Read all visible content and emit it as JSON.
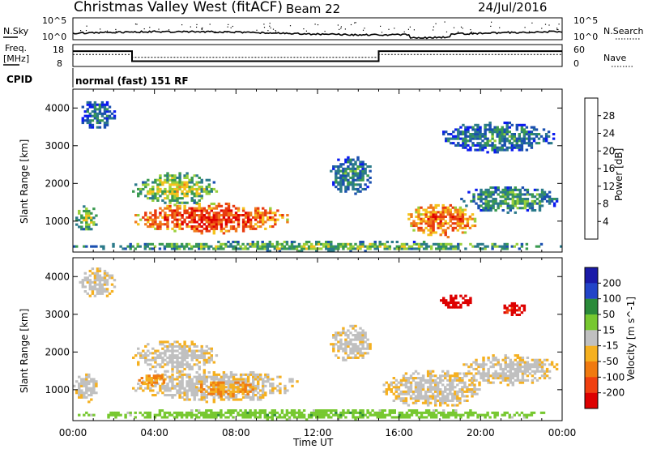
{
  "header": {
    "title": "Christmas Valley West (fitACF)",
    "beam": "Beam 22",
    "date": "24/Jul/2016"
  },
  "noise_panel": {
    "left_label": "N.Sky",
    "right_label": "N.Search",
    "left_ticks": [
      "10^5",
      "10^0"
    ],
    "right_ticks": [
      "10^5",
      "10^0"
    ]
  },
  "freq_panel": {
    "left_label_1": "Freq.",
    "left_label_2": "[MHz]",
    "right_label": "Nave",
    "left_ticks": [
      "18",
      "8"
    ],
    "right_ticks": [
      "60",
      "0"
    ],
    "freq_series": [
      {
        "x": 0,
        "y": 15
      },
      {
        "x": 2.9,
        "y": 15
      },
      {
        "x": 2.9,
        "y": 10.4
      },
      {
        "x": 15,
        "y": 10.4
      },
      {
        "x": 15,
        "y": 15
      },
      {
        "x": 24,
        "y": 15
      }
    ],
    "nave_series": [
      {
        "x": 0,
        "y": 33
      },
      {
        "x": 2.9,
        "y": 33
      },
      {
        "x": 2.9,
        "y": 25
      },
      {
        "x": 15,
        "y": 25
      },
      {
        "x": 15,
        "y": 33
      },
      {
        "x": 24,
        "y": 33
      }
    ]
  },
  "cpid": {
    "label": "CPID",
    "text": "normal (fast) 151 RF"
  },
  "chart_data": [
    {
      "type": "heatmap",
      "panel": "power",
      "ylabel": "Slant Range [km]",
      "xlabel": "Time UT",
      "xlim": [
        0,
        24
      ],
      "ylim": [
        180,
        4500
      ],
      "x_ticks": [
        "00:00",
        "04:00",
        "08:00",
        "12:00",
        "16:00",
        "20:00",
        "00:00"
      ],
      "y_ticks": [
        "1000",
        "2000",
        "3000",
        "4000"
      ],
      "colorbar_label": "Power [dB]",
      "colorbar_ticks": [
        "4",
        "8",
        "12",
        "16",
        "20",
        "24",
        "28"
      ],
      "colorbar_range": [
        0,
        30
      ],
      "regions": [
        {
          "t0": 2.9,
          "t1": 10.5,
          "r0": 650,
          "r1": 1450,
          "v": 26
        },
        {
          "t0": 2.9,
          "t1": 7.0,
          "r0": 1400,
          "r1": 2250,
          "v": 16
        },
        {
          "t0": 0.0,
          "t1": 1.2,
          "r0": 700,
          "r1": 1400,
          "v": 15
        },
        {
          "t0": 0.3,
          "t1": 2.0,
          "r0": 3400,
          "r1": 4200,
          "v": 9
        },
        {
          "t0": 12.6,
          "t1": 14.6,
          "r0": 1700,
          "r1": 2700,
          "v": 10
        },
        {
          "t0": 16.3,
          "t1": 19.8,
          "r0": 550,
          "r1": 1450,
          "v": 24
        },
        {
          "t0": 19.0,
          "t1": 23.8,
          "r0": 1200,
          "r1": 1900,
          "v": 12
        },
        {
          "t0": 18.0,
          "t1": 23.6,
          "r0": 2800,
          "r1": 3600,
          "v": 10
        },
        {
          "t0": 0.0,
          "t1": 24.0,
          "r0": 180,
          "r1": 430,
          "v": 14
        }
      ]
    },
    {
      "type": "heatmap",
      "panel": "velocity",
      "ylabel": "Slant Range [km]",
      "xlabel": "Time UT",
      "xlim": [
        0,
        24
      ],
      "ylim": [
        180,
        4500
      ],
      "x_ticks": [
        "00:00",
        "04:00",
        "08:00",
        "12:00",
        "16:00",
        "20:00",
        "00:00"
      ],
      "y_ticks": [
        "1000",
        "2000",
        "3000",
        "4000"
      ],
      "colorbar_label": "Velocity [m s^-1]",
      "colorbar_ticks": [
        "200",
        "100",
        "50",
        "15",
        "-15",
        "-50",
        "-100",
        "-200"
      ],
      "colorbar_range": [
        -250,
        250
      ],
      "regions": [
        {
          "t0": 2.9,
          "t1": 11.0,
          "r0": 650,
          "r1": 1500,
          "v": 0
        },
        {
          "t0": 2.9,
          "t1": 7.0,
          "r0": 1400,
          "r1": 2300,
          "v": 0
        },
        {
          "t0": 0.0,
          "t1": 1.2,
          "r0": 650,
          "r1": 1400,
          "v": 0
        },
        {
          "t0": 0.3,
          "t1": 2.0,
          "r0": 3400,
          "r1": 4200,
          "v": 0
        },
        {
          "t0": 12.6,
          "t1": 14.6,
          "r0": 1700,
          "r1": 2700,
          "v": 0
        },
        {
          "t0": 15.2,
          "t1": 20.0,
          "r0": 500,
          "r1": 1500,
          "v": 0
        },
        {
          "t0": 19.0,
          "t1": 23.8,
          "r0": 1100,
          "r1": 1900,
          "v": 0
        },
        {
          "t0": 6.0,
          "t1": 9.0,
          "r0": 800,
          "r1": 1200,
          "v": -40
        },
        {
          "t0": 3.2,
          "t1": 4.6,
          "r0": 1100,
          "r1": 1400,
          "v": -40
        },
        {
          "t0": 18.0,
          "t1": 19.6,
          "r0": 3100,
          "r1": 3500,
          "v": -220
        },
        {
          "t0": 21.0,
          "t1": 22.2,
          "r0": 2900,
          "r1": 3300,
          "v": -200
        },
        {
          "t0": 0.0,
          "t1": 24.0,
          "r0": 180,
          "r1": 450,
          "v": 40
        }
      ]
    }
  ],
  "colors": {
    "power_scale": [
      "#0a1af0",
      "#1a4fb0",
      "#2b7a8a",
      "#3a9a50",
      "#9ad03a",
      "#f5c21c",
      "#f07a1c",
      "#e83a10",
      "#e00000"
    ],
    "velocity_scale": [
      "#1a1aa8",
      "#2244c8",
      "#2a8a3a",
      "#77c830",
      "#c0c0c0",
      "#f5b020",
      "#f07a10",
      "#f04010",
      "#dd0000"
    ]
  }
}
